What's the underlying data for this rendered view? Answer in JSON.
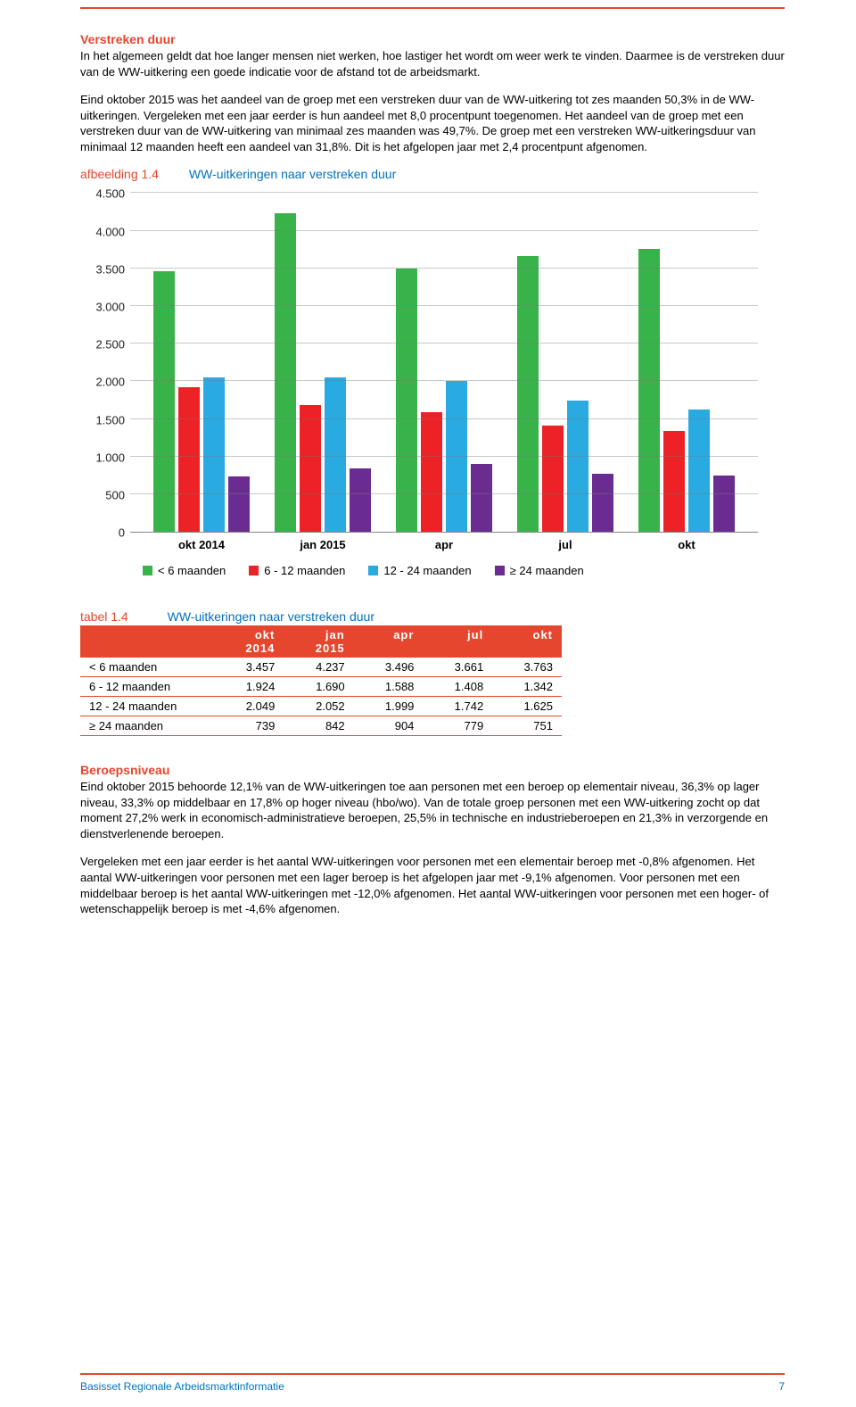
{
  "colors": {
    "accent_red": "#e6462e",
    "accent_blue": "#0072bc",
    "series_green": "#38b349",
    "series_red": "#ec2227",
    "series_blue": "#29aae1",
    "series_purple": "#6b2c91",
    "grid": "#888888",
    "background": "#ffffff"
  },
  "section1": {
    "heading": "Verstreken duur",
    "para1": "In het algemeen geldt dat hoe langer mensen niet werken, hoe lastiger het wordt om weer werk te vinden. Daarmee is de verstreken duur van de WW-uitkering een goede indicatie voor de afstand tot de arbeidsmarkt.",
    "para2": "Eind oktober 2015 was het aandeel van de groep met een verstreken duur van de WW-uitkering tot zes maanden 50,3% in de WW-uitkeringen. Vergeleken met een jaar eerder is hun aandeel met 8,0 procentpunt toegenomen. Het aandeel van de groep met een verstreken duur van de WW-uitkering van minimaal zes maanden was 49,7%. De groep met een verstreken WW-uitkeringsduur van minimaal 12 maanden heeft een aandeel van 31,8%. Dit is het afgelopen jaar met 2,4 procentpunt afgenomen."
  },
  "figure": {
    "label": "afbeelding 1.4",
    "name": "WW-uitkeringen naar verstreken duur"
  },
  "chart": {
    "ymax": 4500,
    "ytick_step": 500,
    "yticks": [
      4500,
      4000,
      3500,
      3000,
      2500,
      2000,
      1500,
      1000,
      500,
      0
    ],
    "ytick_labels": [
      "4.500",
      "4.000",
      "3.500",
      "3.000",
      "2.500",
      "2.000",
      "1.500",
      "1.000",
      "500",
      "0"
    ],
    "categories": [
      "okt 2014",
      "jan 2015",
      "apr",
      "jul",
      "okt"
    ],
    "series": [
      {
        "key": "s1",
        "label": "< 6 maanden",
        "color": "#38b349"
      },
      {
        "key": "s2",
        "label": "6 - 12 maanden",
        "color": "#ec2227"
      },
      {
        "key": "s3",
        "label": "12 - 24 maanden",
        "color": "#29aae1"
      },
      {
        "key": "s4",
        "label": "≥ 24 maanden",
        "color": "#6b2c91"
      }
    ],
    "values": {
      "s1": [
        3457,
        4237,
        3496,
        3661,
        3763
      ],
      "s2": [
        1924,
        1690,
        1588,
        1408,
        1342
      ],
      "s3": [
        2049,
        2052,
        1999,
        1742,
        1625
      ],
      "s4": [
        739,
        842,
        904,
        779,
        751
      ]
    }
  },
  "table": {
    "label": "tabel 1.4",
    "name": "WW-uitkeringen naar verstreken duur",
    "headers_row1": [
      "",
      "okt",
      "jan",
      "apr",
      "jul",
      "okt"
    ],
    "headers_row2": [
      "",
      "2014",
      "2015",
      "",
      "",
      ""
    ],
    "rows": [
      [
        "< 6 maanden",
        "3.457",
        "4.237",
        "3.496",
        "3.661",
        "3.763"
      ],
      [
        "6 - 12 maanden",
        "1.924",
        "1.690",
        "1.588",
        "1.408",
        "1.342"
      ],
      [
        "12 - 24 maanden",
        "2.049",
        "2.052",
        "1.999",
        "1.742",
        "1.625"
      ],
      [
        "≥ 24 maanden",
        "739",
        "842",
        "904",
        "779",
        "751"
      ]
    ]
  },
  "section2": {
    "heading": "Beroepsniveau",
    "para1": "Eind oktober 2015 behoorde 12,1% van de WW-uitkeringen toe aan personen met een beroep op elementair niveau, 36,3% op lager niveau, 33,3% op middelbaar en 17,8% op hoger niveau (hbo/wo). Van de totale groep personen met een WW-uitkering zocht op dat moment 27,2% werk in economisch-administratieve beroepen, 25,5% in technische en industrieberoepen en 21,3% in verzorgende en dienstverlenende beroepen.",
    "para2": "Vergeleken met een jaar eerder is het aantal WW-uitkeringen voor personen met een elementair beroep met -0,8% afgenomen. Het aantal WW-uitkeringen voor personen met een lager beroep is het afgelopen jaar met -9,1% afgenomen. Voor personen met een middelbaar beroep is het aantal WW-uitkeringen met -12,0% afgenomen. Het aantal WW-uitkeringen voor personen met een hoger- of wetenschappelijk beroep is met -4,6% afgenomen."
  },
  "footer": {
    "left": "Basisset Regionale Arbeidsmarktinformatie",
    "page": "7"
  }
}
